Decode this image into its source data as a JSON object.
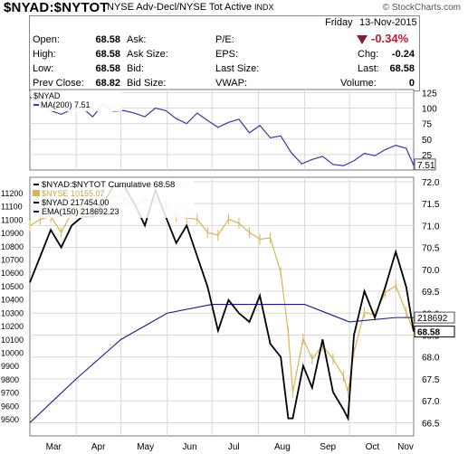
{
  "header": {
    "symbol": "$NYAD:$NYTOT",
    "description": "NYSE Adv-Decl/NYSE Tot Active",
    "index_tag": "INDX",
    "copyright": "© StockCharts.com",
    "day": "Friday",
    "date": "13-Nov-2015"
  },
  "quote": {
    "open_label": "Open:",
    "open": "68.58",
    "high_label": "High:",
    "high": "68.58",
    "low_label": "Low:",
    "low": "68.58",
    "prev_label": "Prev Close:",
    "prev": "68.82",
    "ask_label": "Ask:",
    "ask": "",
    "asksize_label": "Ask Size:",
    "asksize": "",
    "bid_label": "Bid:",
    "bid": "",
    "bidsize_label": "Bid Size:",
    "bidsize": "",
    "pe_label": "P/E:",
    "pe": "",
    "eps_label": "EPS:",
    "eps": "",
    "lastsize_label": "Last Size:",
    "lastsize": "",
    "vwap_label": "VWAP:",
    "vwap": "",
    "change_pct": "-0.34%",
    "chg_label": "Chg:",
    "chg": "-0.24",
    "last_label": "Last:",
    "last": "68.58",
    "volume_label": "Volume:",
    "volume": "0"
  },
  "colors": {
    "ma_line": "#3a3a9e",
    "ema_line": "#1a1a7a",
    "nyse_line": "#d8b45a",
    "nyad_line": "#000000",
    "grid": "#d9d9d9",
    "change_down": "#b3203a"
  },
  "chart_data": [
    {
      "type": "line",
      "legend": [
        "$NYAD",
        "MA(200) 7.51"
      ],
      "series": [
        {
          "name": "MA(200) 7.51",
          "x": [
            "Mar-1",
            "Mar-8",
            "Mar-15",
            "Mar-22",
            "Mar-29",
            "Apr-5",
            "Apr-12",
            "Apr-19",
            "Apr-26",
            "May-3",
            "May-10",
            "May-17",
            "May-24",
            "May-31",
            "Jun-7",
            "Jun-14",
            "Jun-21",
            "Jun-28",
            "Jul-5",
            "Jul-12",
            "Jul-19",
            "Jul-26",
            "Aug-2",
            "Aug-9",
            "Aug-16",
            "Aug-23",
            "Aug-30",
            "Sep-6",
            "Sep-13",
            "Sep-20",
            "Sep-27",
            "Oct-4",
            "Oct-11",
            "Oct-18",
            "Oct-25",
            "Nov-1",
            "Nov-8",
            "Nov-13"
          ],
          "values": [
            118,
            108,
            96,
            90,
            98,
            101,
            86,
            106,
            95,
            96,
            92,
            86,
            100,
            96,
            83,
            75,
            92,
            80,
            69,
            77,
            82,
            60,
            72,
            52,
            55,
            28,
            10,
            17,
            22,
            9,
            7,
            15,
            27,
            23,
            33,
            40,
            35,
            7.51
          ]
        }
      ],
      "last_label": "7.51",
      "y_ticks": [
        125,
        100,
        75,
        50,
        25
      ],
      "ylim": [
        0,
        130
      ]
    },
    {
      "type": "line",
      "legend": [
        "$NYAD:$NYTOT Cumulative 68.58",
        "$NYSE 10155.07",
        "$NYAD 217454.00",
        "EMA(150) 218692.23"
      ],
      "x_ticks": [
        "Mar",
        "Apr",
        "May",
        "Jun",
        "Jul",
        "Aug",
        "Sep",
        "Oct",
        "Nov"
      ],
      "left_ticks": [
        11200,
        11100,
        11000,
        10900,
        10800,
        10700,
        10600,
        10500,
        10400,
        10300,
        10200,
        10100,
        10000,
        9900,
        9800,
        9700,
        9600,
        9500
      ],
      "right_ticks": [
        72.0,
        71.5,
        71.0,
        70.5,
        70.0,
        69.5,
        69.0,
        68.5,
        68.0,
        67.5,
        67.0,
        66.5
      ],
      "right_ylim": [
        66.2,
        72.1
      ],
      "last_labels": {
        "ema": "218692",
        "ratio": "68.58"
      },
      "series": [
        {
          "name": "$NYAD:$NYTOT Cumulative",
          "x": [
            "Mar-1",
            "Mar-8",
            "Mar-15",
            "Mar-22",
            "Mar-29",
            "Apr-5",
            "Apr-12",
            "Apr-19",
            "Apr-26",
            "May-3",
            "May-10",
            "May-17",
            "May-24",
            "May-31",
            "Jun-7",
            "Jun-14",
            "Jun-21",
            "Jun-28",
            "Jul-5",
            "Jul-12",
            "Jul-19",
            "Jul-26",
            "Aug-2",
            "Aug-9",
            "Aug-16",
            "Aug-21",
            "Aug-24",
            "Aug-31",
            "Sep-6",
            "Sep-13",
            "Sep-20",
            "Sep-27",
            "Sep-30",
            "Oct-4",
            "Oct-11",
            "Oct-18",
            "Oct-25",
            "Nov-1",
            "Nov-8",
            "Nov-13"
          ],
          "values": [
            69.7,
            70.3,
            70.9,
            70.5,
            71.0,
            71.2,
            71.2,
            71.5,
            71.9,
            71.9,
            71.5,
            71.0,
            71.8,
            71.2,
            70.6,
            71.0,
            70.3,
            69.6,
            68.6,
            69.3,
            69.0,
            68.8,
            69.4,
            68.3,
            68.0,
            66.6,
            66.6,
            67.8,
            67.3,
            68.4,
            67.2,
            66.8,
            66.6,
            68.5,
            69.5,
            68.9,
            69.6,
            70.4,
            69.6,
            68.58
          ]
        },
        {
          "name": "EMA(150)",
          "x": [
            "Mar-1",
            "Apr-1",
            "May-1",
            "Jun-1",
            "Jul-1",
            "Aug-1",
            "Sep-1",
            "Oct-1",
            "Nov-1",
            "Nov-13"
          ],
          "values": [
            66.5,
            67.5,
            68.4,
            69.0,
            69.2,
            69.2,
            69.2,
            68.8,
            68.9,
            68.9
          ]
        },
        {
          "name": "$NYSE",
          "x": [
            "Mar-1",
            "Mar-8",
            "Mar-15",
            "Mar-22",
            "Mar-29",
            "Apr-5",
            "Apr-12",
            "Apr-19",
            "Apr-26",
            "May-3",
            "May-10",
            "May-17",
            "May-24",
            "May-31",
            "Jun-7",
            "Jun-14",
            "Jun-21",
            "Jun-28",
            "Jul-5",
            "Jul-12",
            "Jul-19",
            "Jul-26",
            "Aug-2",
            "Aug-9",
            "Aug-16",
            "Aug-21",
            "Aug-24",
            "Aug-31",
            "Sep-6",
            "Sep-13",
            "Sep-20",
            "Sep-27",
            "Sep-30",
            "Oct-4",
            "Oct-11",
            "Oct-18",
            "Oct-25",
            "Nov-1",
            "Nov-8",
            "Nov-13"
          ],
          "values": [
            10950,
            11000,
            11020,
            10900,
            11050,
            11080,
            11100,
            11120,
            11180,
            11160,
            11100,
            11150,
            11130,
            11100,
            11020,
            11010,
            11000,
            10900,
            10880,
            11000,
            10970,
            10900,
            10850,
            10860,
            10600,
            10150,
            9700,
            10100,
            9950,
            10050,
            9950,
            9820,
            9700,
            10000,
            10300,
            10280,
            10450,
            10500,
            10300,
            10155
          ]
        }
      ]
    }
  ]
}
